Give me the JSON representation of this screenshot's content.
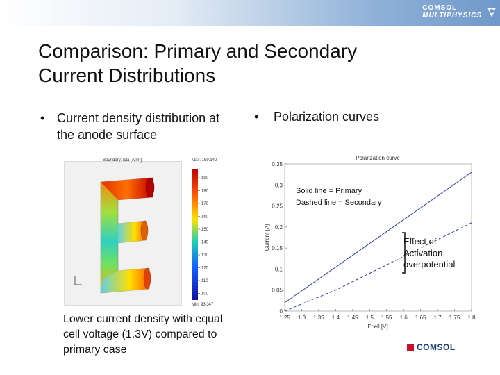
{
  "header": {
    "brand_line1": "COMSOL",
    "brand_line2": "MULTIPHYSICS"
  },
  "slide": {
    "title_line1": "Comparison: Primary and Secondary",
    "title_line2": "Current Distributions",
    "left_bullet_line1": "Current density distribution at",
    "left_bullet_line2": "the anode surface",
    "right_bullet": "Polarization curves",
    "caption_line1": "Lower current density with equal",
    "caption_line2": "cell voltage (1.3V) compared to",
    "caption_line3": "primary case",
    "note_line1": "Solid line = Primary",
    "note_line2": "Dashed line = Secondary",
    "effect_line1": "Effect of",
    "effect_line2": "Activation",
    "effect_line3": "overpotential",
    "footer_brand": "COMSOL"
  },
  "simulation": {
    "title": "Boundary: icta [A/m²]",
    "max_label": "Max: 159.140",
    "min_label": "Min: 93.347",
    "ticks": [
      "190",
      "180",
      "170",
      "160",
      "150",
      "140",
      "130",
      "120",
      "110",
      "100"
    ],
    "colors": {
      "high": "#c00000",
      "mid": "#20d0b0",
      "low": "#1010a0"
    }
  },
  "chart_data": {
    "type": "line",
    "title": "Polarization curve",
    "xlabel": "Ecell [V]",
    "ylabel": "Current [A]",
    "xlim": [
      1.25,
      1.8
    ],
    "ylim": [
      0,
      0.35
    ],
    "x_ticks": [
      "1.25",
      "1.3",
      "1.35",
      "1.4",
      "1.45",
      "1.5",
      "1.55",
      "1.6",
      "1.65",
      "1.7",
      "1.75",
      "1.8"
    ],
    "y_ticks": [
      "0",
      "0.05",
      "0.1",
      "0.15",
      "0.2",
      "0.25",
      "0.3",
      "0.35"
    ],
    "grid": false,
    "series": [
      {
        "style": "solid",
        "color": "#2a3f9e",
        "x": [
          1.25,
          1.8
        ],
        "y": [
          0.02,
          0.33
        ]
      },
      {
        "style": "dashed",
        "color": "#2a3f9e",
        "x": [
          1.25,
          1.3,
          1.4,
          1.5,
          1.6,
          1.7,
          1.8
        ],
        "y": [
          0.0,
          0.017,
          0.05,
          0.09,
          0.13,
          0.17,
          0.21
        ]
      }
    ]
  }
}
